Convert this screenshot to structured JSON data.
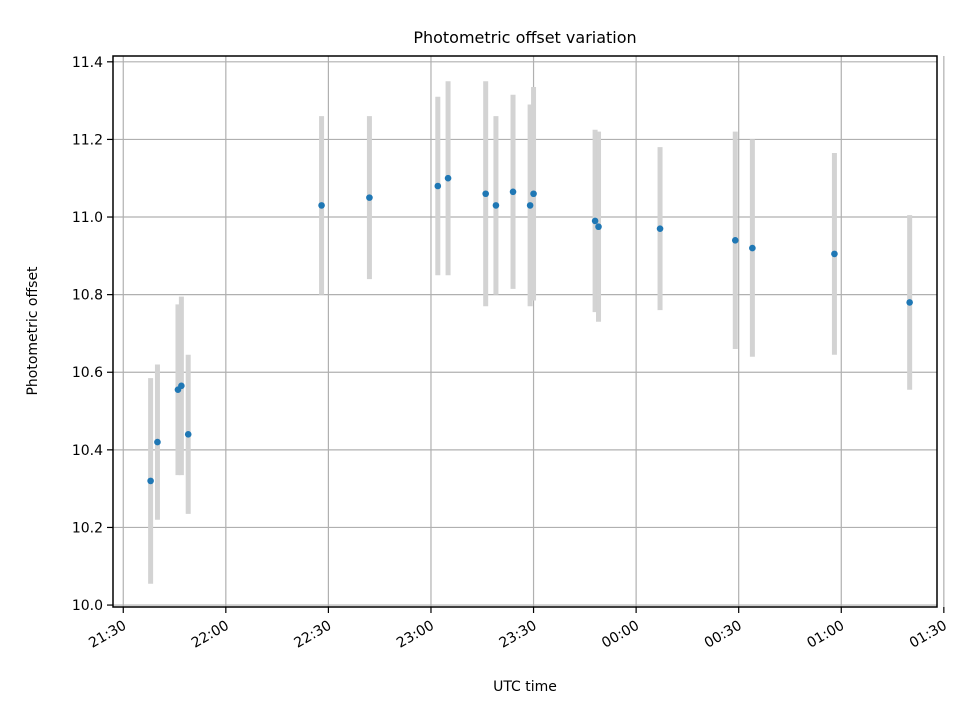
{
  "chart_data": {
    "type": "scatter",
    "title": "Photometric offset variation",
    "xlabel": "UTC time",
    "ylabel": "Photometric offset",
    "xlim": [
      "21:27",
      "01:28"
    ],
    "ylim": [
      9.995,
      11.415
    ],
    "grid": true,
    "legend": "none",
    "colors": {
      "points": "#1f77b4",
      "errorbars": "#d3d3d3",
      "grid": "#b0b0b0"
    },
    "x_ticks": [
      "21:30",
      "22:00",
      "22:30",
      "23:00",
      "23:30",
      "00:00",
      "00:30",
      "01:00",
      "01:30"
    ],
    "y_ticks": [
      "10.0",
      "10.2",
      "10.4",
      "10.6",
      "10.8",
      "11.0",
      "11.2",
      "11.4"
    ],
    "series": [
      {
        "points": [
          {
            "x": "21:38",
            "y": 10.32,
            "err": 0.265
          },
          {
            "x": "21:40",
            "y": 10.42,
            "err": 0.2
          },
          {
            "x": "21:46",
            "y": 10.555,
            "err": 0.22
          },
          {
            "x": "21:47",
            "y": 10.565,
            "err": 0.23
          },
          {
            "x": "21:49",
            "y": 10.44,
            "err": 0.205
          },
          {
            "x": "22:28",
            "y": 11.03,
            "err": 0.23
          },
          {
            "x": "22:42",
            "y": 11.05,
            "err": 0.21
          },
          {
            "x": "23:02",
            "y": 11.08,
            "err": 0.23
          },
          {
            "x": "23:05",
            "y": 11.1,
            "err": 0.25
          },
          {
            "x": "23:16",
            "y": 11.06,
            "err": 0.29
          },
          {
            "x": "23:19",
            "y": 11.03,
            "err": 0.23
          },
          {
            "x": "23:24",
            "y": 11.065,
            "err": 0.25
          },
          {
            "x": "23:29",
            "y": 11.03,
            "err": 0.26
          },
          {
            "x": "23:30",
            "y": 11.06,
            "err": 0.275
          },
          {
            "x": "23:48",
            "y": 10.99,
            "err": 0.235
          },
          {
            "x": "23:49",
            "y": 10.975,
            "err": 0.245
          },
          {
            "x": "00:07",
            "y": 10.97,
            "err": 0.21
          },
          {
            "x": "00:29",
            "y": 10.94,
            "err": 0.28
          },
          {
            "x": "00:34",
            "y": 10.92,
            "err": 0.28
          },
          {
            "x": "00:58",
            "y": 10.905,
            "err": 0.26
          },
          {
            "x": "01:20",
            "y": 10.78,
            "err": 0.225
          }
        ]
      }
    ]
  }
}
